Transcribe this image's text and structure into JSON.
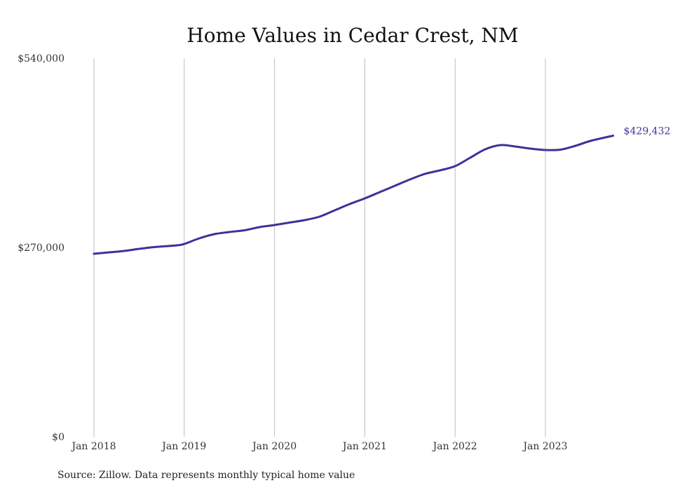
{
  "colors": {
    "series": "#3a3399",
    "grid": "#bdbdbd",
    "text": "#333333"
  },
  "chart_data": {
    "type": "line",
    "title": "Home Values in Cedar Crest, NM",
    "xlabel": "",
    "ylabel": "",
    "ylim": [
      0,
      540000
    ],
    "yticks": [
      0,
      270000,
      540000
    ],
    "ytick_labels": [
      "$0",
      "$270,000",
      "$540,000"
    ],
    "xticks": [
      "2018-01",
      "2019-01",
      "2020-01",
      "2021-01",
      "2022-01",
      "2023-01"
    ],
    "xtick_labels": [
      "Jan 2018",
      "Jan 2019",
      "Jan 2020",
      "Jan 2021",
      "Jan 2022",
      "Jan 2023"
    ],
    "xlim": [
      "2018-01",
      "2023-10"
    ],
    "grid": "vertical",
    "legend": "none",
    "series": [
      {
        "values": [
          {
            "x": "2018-01",
            "y": 261000
          },
          {
            "x": "2018-03",
            "y": 263000
          },
          {
            "x": "2018-05",
            "y": 265000
          },
          {
            "x": "2018-07",
            "y": 268000
          },
          {
            "x": "2018-09",
            "y": 270500
          },
          {
            "x": "2018-12",
            "y": 273000
          },
          {
            "x": "2019-01",
            "y": 275000
          },
          {
            "x": "2019-03",
            "y": 283000
          },
          {
            "x": "2019-05",
            "y": 289000
          },
          {
            "x": "2019-07",
            "y": 292000
          },
          {
            "x": "2019-09",
            "y": 294500
          },
          {
            "x": "2019-11",
            "y": 299000
          },
          {
            "x": "2020-01",
            "y": 302000
          },
          {
            "x": "2020-03",
            "y": 305500
          },
          {
            "x": "2020-05",
            "y": 309000
          },
          {
            "x": "2020-07",
            "y": 314000
          },
          {
            "x": "2020-09",
            "y": 323000
          },
          {
            "x": "2020-11",
            "y": 332000
          },
          {
            "x": "2021-01",
            "y": 340000
          },
          {
            "x": "2021-03",
            "y": 349000
          },
          {
            "x": "2021-05",
            "y": 358000
          },
          {
            "x": "2021-07",
            "y": 367000
          },
          {
            "x": "2021-09",
            "y": 375000
          },
          {
            "x": "2021-11",
            "y": 380000
          },
          {
            "x": "2022-01",
            "y": 386000
          },
          {
            "x": "2022-03",
            "y": 398000
          },
          {
            "x": "2022-05",
            "y": 410000
          },
          {
            "x": "2022-07",
            "y": 416000
          },
          {
            "x": "2022-09",
            "y": 414000
          },
          {
            "x": "2022-11",
            "y": 411000
          },
          {
            "x": "2023-01",
            "y": 409000
          },
          {
            "x": "2023-03",
            "y": 409500
          },
          {
            "x": "2023-05",
            "y": 415000
          },
          {
            "x": "2023-07",
            "y": 422000
          },
          {
            "x": "2023-10",
            "y": 429432
          }
        ]
      }
    ],
    "annotations": [
      {
        "x": "2023-10",
        "y": 429432,
        "text": "$429,432"
      }
    ],
    "source": "Source: Zillow. Data represents monthly typical home value"
  }
}
